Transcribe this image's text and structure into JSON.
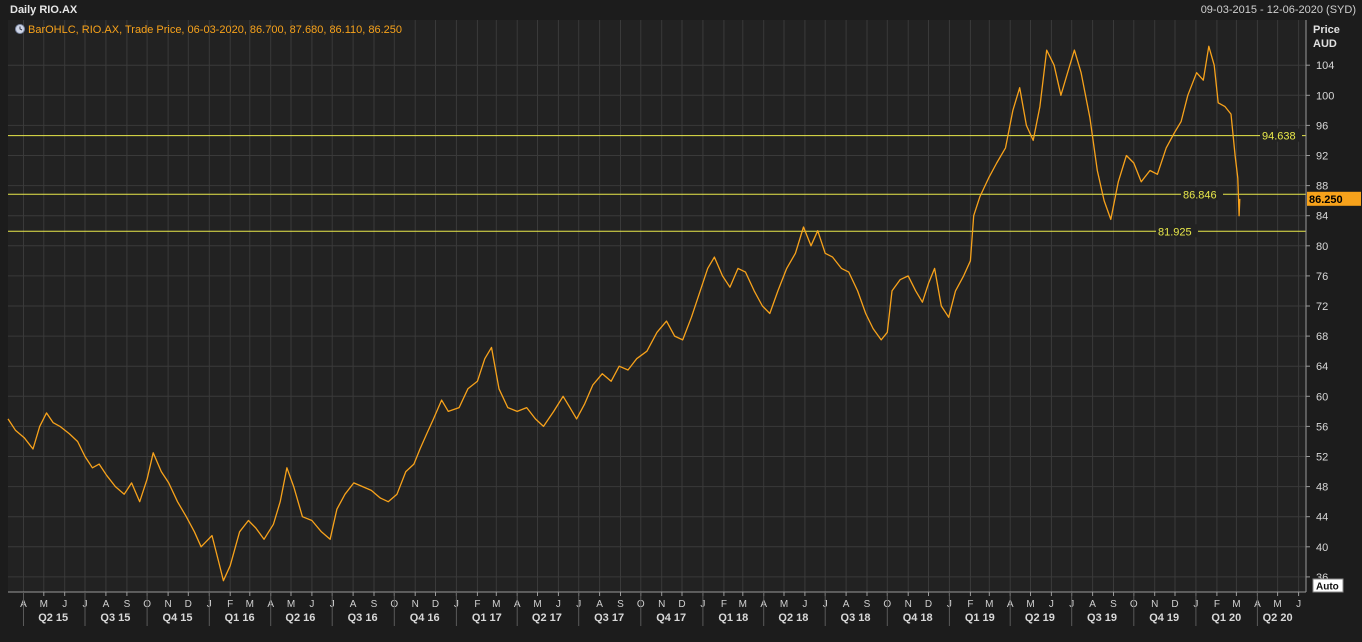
{
  "window": {
    "title": "Daily RIO.AX",
    "date_range": "09-03-2015 - 12-06-2020 (SYD)",
    "auto_label": "Auto"
  },
  "legend": {
    "text": "BarOHLC, RIO.AX, Trade Price, 06-03-2020, 86.700, 87.680, 86.110, 86.250",
    "icon": "clock-icon"
  },
  "colors": {
    "background": "#1c1c1c",
    "plot_background": "#222222",
    "grid": "#3a3a3a",
    "series": "#f7a21b",
    "levels": "#e8e84a",
    "last_price_tag": "#f7a21b"
  },
  "chart_data": {
    "type": "line",
    "title": "Daily RIO.AX",
    "series": [
      {
        "name": "RIO.AX",
        "points": [
          [
            "2015-03-09",
            57.0
          ],
          [
            "2015-03-20",
            55.5
          ],
          [
            "2015-04-02",
            54.5
          ],
          [
            "2015-04-15",
            53.0
          ],
          [
            "2015-04-25",
            56.0
          ],
          [
            "2015-05-05",
            57.8
          ],
          [
            "2015-05-15",
            56.5
          ],
          [
            "2015-05-25",
            56.0
          ],
          [
            "2015-06-08",
            55.0
          ],
          [
            "2015-06-20",
            54.0
          ],
          [
            "2015-07-01",
            52.0
          ],
          [
            "2015-07-12",
            50.5
          ],
          [
            "2015-07-22",
            51.0
          ],
          [
            "2015-08-02",
            49.5
          ],
          [
            "2015-08-15",
            48.0
          ],
          [
            "2015-08-28",
            47.0
          ],
          [
            "2015-09-08",
            48.5
          ],
          [
            "2015-09-20",
            46.0
          ],
          [
            "2015-10-01",
            49.0
          ],
          [
            "2015-10-10",
            52.5
          ],
          [
            "2015-10-22",
            50.0
          ],
          [
            "2015-11-02",
            48.5
          ],
          [
            "2015-11-15",
            46.0
          ],
          [
            "2015-11-28",
            44.0
          ],
          [
            "2015-12-10",
            42.0
          ],
          [
            "2015-12-20",
            40.0
          ],
          [
            "2016-01-05",
            41.5
          ],
          [
            "2016-01-15",
            38.0
          ],
          [
            "2016-01-22",
            35.5
          ],
          [
            "2016-02-01",
            37.5
          ],
          [
            "2016-02-15",
            42.0
          ],
          [
            "2016-02-28",
            43.5
          ],
          [
            "2016-03-10",
            42.5
          ],
          [
            "2016-03-22",
            41.0
          ],
          [
            "2016-04-05",
            43.0
          ],
          [
            "2016-04-15",
            46.0
          ],
          [
            "2016-04-25",
            50.5
          ],
          [
            "2016-05-05",
            48.0
          ],
          [
            "2016-05-18",
            44.0
          ],
          [
            "2016-06-01",
            43.5
          ],
          [
            "2016-06-15",
            42.0
          ],
          [
            "2016-06-28",
            41.0
          ],
          [
            "2016-07-08",
            45.0
          ],
          [
            "2016-07-20",
            47.0
          ],
          [
            "2016-08-02",
            48.5
          ],
          [
            "2016-08-15",
            48.0
          ],
          [
            "2016-08-28",
            47.5
          ],
          [
            "2016-09-10",
            46.5
          ],
          [
            "2016-09-22",
            46.0
          ],
          [
            "2016-10-05",
            47.0
          ],
          [
            "2016-10-18",
            50.0
          ],
          [
            "2016-10-30",
            51.0
          ],
          [
            "2016-11-08",
            53.0
          ],
          [
            "2016-11-18",
            55.0
          ],
          [
            "2016-11-28",
            57.0
          ],
          [
            "2016-12-10",
            59.5
          ],
          [
            "2016-12-20",
            58.0
          ],
          [
            "2017-01-05",
            58.5
          ],
          [
            "2017-01-18",
            61.0
          ],
          [
            "2017-02-01",
            62.0
          ],
          [
            "2017-02-12",
            65.0
          ],
          [
            "2017-02-22",
            66.5
          ],
          [
            "2017-03-05",
            61.0
          ],
          [
            "2017-03-18",
            58.5
          ],
          [
            "2017-04-01",
            58.0
          ],
          [
            "2017-04-15",
            58.5
          ],
          [
            "2017-04-28",
            57.0
          ],
          [
            "2017-05-10",
            56.0
          ],
          [
            "2017-05-25",
            58.0
          ],
          [
            "2017-06-08",
            60.0
          ],
          [
            "2017-06-18",
            58.5
          ],
          [
            "2017-06-28",
            57.0
          ],
          [
            "2017-07-10",
            59.0
          ],
          [
            "2017-07-22",
            61.5
          ],
          [
            "2017-08-05",
            63.0
          ],
          [
            "2017-08-18",
            62.0
          ],
          [
            "2017-08-30",
            64.0
          ],
          [
            "2017-09-12",
            63.5
          ],
          [
            "2017-09-25",
            65.0
          ],
          [
            "2017-10-10",
            66.0
          ],
          [
            "2017-10-25",
            68.5
          ],
          [
            "2017-11-08",
            70.0
          ],
          [
            "2017-11-20",
            68.0
          ],
          [
            "2017-12-02",
            67.5
          ],
          [
            "2017-12-15",
            70.5
          ],
          [
            "2017-12-28",
            74.0
          ],
          [
            "2018-01-08",
            77.0
          ],
          [
            "2018-01-18",
            78.5
          ],
          [
            "2018-01-30",
            76.0
          ],
          [
            "2018-02-10",
            74.5
          ],
          [
            "2018-02-22",
            77.0
          ],
          [
            "2018-03-05",
            76.5
          ],
          [
            "2018-03-18",
            74.0
          ],
          [
            "2018-03-30",
            72.0
          ],
          [
            "2018-04-10",
            71.0
          ],
          [
            "2018-04-22",
            74.0
          ],
          [
            "2018-05-05",
            77.0
          ],
          [
            "2018-05-18",
            79.0
          ],
          [
            "2018-05-30",
            82.5
          ],
          [
            "2018-06-10",
            80.0
          ],
          [
            "2018-06-20",
            82.0
          ],
          [
            "2018-07-01",
            79.0
          ],
          [
            "2018-07-12",
            78.5
          ],
          [
            "2018-07-25",
            77.0
          ],
          [
            "2018-08-05",
            76.5
          ],
          [
            "2018-08-18",
            74.0
          ],
          [
            "2018-08-30",
            71.0
          ],
          [
            "2018-09-10",
            69.0
          ],
          [
            "2018-09-22",
            67.5
          ],
          [
            "2018-10-01",
            68.5
          ],
          [
            "2018-10-08",
            74.0
          ],
          [
            "2018-10-20",
            75.5
          ],
          [
            "2018-11-01",
            76.0
          ],
          [
            "2018-11-12",
            74.0
          ],
          [
            "2018-11-22",
            72.5
          ],
          [
            "2018-12-01",
            75.0
          ],
          [
            "2018-12-10",
            77.0
          ],
          [
            "2018-12-20",
            72.0
          ],
          [
            "2018-12-31",
            70.5
          ],
          [
            "2019-01-10",
            74.0
          ],
          [
            "2019-01-22",
            76.0
          ],
          [
            "2019-02-01",
            78.0
          ],
          [
            "2019-02-06",
            84.0
          ],
          [
            "2019-02-15",
            86.5
          ],
          [
            "2019-02-28",
            89.0
          ],
          [
            "2019-03-12",
            91.0
          ],
          [
            "2019-03-25",
            93.0
          ],
          [
            "2019-04-05",
            98.0
          ],
          [
            "2019-04-15",
            101.0
          ],
          [
            "2019-04-25",
            96.0
          ],
          [
            "2019-05-05",
            94.0
          ],
          [
            "2019-05-15",
            98.5
          ],
          [
            "2019-05-25",
            106.0
          ],
          [
            "2019-06-05",
            104.0
          ],
          [
            "2019-06-15",
            100.0
          ],
          [
            "2019-06-25",
            103.0
          ],
          [
            "2019-07-05",
            106.0
          ],
          [
            "2019-07-15",
            103.0
          ],
          [
            "2019-07-28",
            97.0
          ],
          [
            "2019-08-08",
            90.0
          ],
          [
            "2019-08-18",
            86.0
          ],
          [
            "2019-08-28",
            83.5
          ],
          [
            "2019-09-08",
            88.5
          ],
          [
            "2019-09-20",
            92.0
          ],
          [
            "2019-10-01",
            91.0
          ],
          [
            "2019-10-12",
            88.5
          ],
          [
            "2019-10-25",
            90.0
          ],
          [
            "2019-11-05",
            89.5
          ],
          [
            "2019-11-18",
            93.0
          ],
          [
            "2019-11-30",
            95.0
          ],
          [
            "2019-12-10",
            96.5
          ],
          [
            "2019-12-20",
            100.0
          ],
          [
            "2020-01-02",
            103.0
          ],
          [
            "2020-01-12",
            102.0
          ],
          [
            "2020-01-20",
            106.5
          ],
          [
            "2020-01-28",
            104.0
          ],
          [
            "2020-02-03",
            99.0
          ],
          [
            "2020-02-13",
            98.5
          ],
          [
            "2020-02-22",
            97.5
          ],
          [
            "2020-02-28",
            92.0
          ],
          [
            "2020-03-03",
            89.0
          ],
          [
            "2020-03-05",
            84.0
          ],
          [
            "2020-03-06",
            86.25
          ]
        ]
      }
    ],
    "xlim": [
      "2015-03-09",
      "2020-06-12"
    ],
    "ylim": [
      34.0,
      110.0
    ],
    "yticks": [
      36,
      40,
      44,
      48,
      52,
      56,
      60,
      64,
      68,
      72,
      76,
      80,
      84,
      88,
      92,
      96,
      100,
      104
    ],
    "ylabel": "Price\nAUD",
    "ylabel_lines": [
      "Price",
      "AUD"
    ],
    "y_axis_position": "right",
    "grid": true,
    "horizontal_levels": [
      {
        "value": 94.638,
        "label": "94.638"
      },
      {
        "value": 86.846,
        "label": "86.846"
      },
      {
        "value": 81.925,
        "label": "81.925"
      }
    ],
    "last_price": {
      "value": 86.25,
      "label": "86.250"
    },
    "month_ticks": [
      [
        "2015-04-01",
        "A"
      ],
      [
        "2015-05-01",
        "M"
      ],
      [
        "2015-06-01",
        "J"
      ],
      [
        "2015-07-01",
        "J"
      ],
      [
        "2015-08-01",
        "A"
      ],
      [
        "2015-09-01",
        "S"
      ],
      [
        "2015-10-01",
        "O"
      ],
      [
        "2015-11-01",
        "N"
      ],
      [
        "2015-12-01",
        "D"
      ],
      [
        "2016-01-01",
        "J"
      ],
      [
        "2016-02-01",
        "F"
      ],
      [
        "2016-03-01",
        "M"
      ],
      [
        "2016-04-01",
        "A"
      ],
      [
        "2016-05-01",
        "M"
      ],
      [
        "2016-06-01",
        "J"
      ],
      [
        "2016-07-01",
        "J"
      ],
      [
        "2016-08-01",
        "A"
      ],
      [
        "2016-09-01",
        "S"
      ],
      [
        "2016-10-01",
        "O"
      ],
      [
        "2016-11-01",
        "N"
      ],
      [
        "2016-12-01",
        "D"
      ],
      [
        "2017-01-01",
        "J"
      ],
      [
        "2017-02-01",
        "F"
      ],
      [
        "2017-03-01",
        "M"
      ],
      [
        "2017-04-01",
        "A"
      ],
      [
        "2017-05-01",
        "M"
      ],
      [
        "2017-06-01",
        "J"
      ],
      [
        "2017-07-01",
        "J"
      ],
      [
        "2017-08-01",
        "A"
      ],
      [
        "2017-09-01",
        "S"
      ],
      [
        "2017-10-01",
        "O"
      ],
      [
        "2017-11-01",
        "N"
      ],
      [
        "2017-12-01",
        "D"
      ],
      [
        "2018-01-01",
        "J"
      ],
      [
        "2018-02-01",
        "F"
      ],
      [
        "2018-03-01",
        "M"
      ],
      [
        "2018-04-01",
        "A"
      ],
      [
        "2018-05-01",
        "M"
      ],
      [
        "2018-06-01",
        "J"
      ],
      [
        "2018-07-01",
        "J"
      ],
      [
        "2018-08-01",
        "A"
      ],
      [
        "2018-09-01",
        "S"
      ],
      [
        "2018-10-01",
        "O"
      ],
      [
        "2018-11-01",
        "N"
      ],
      [
        "2018-12-01",
        "D"
      ],
      [
        "2019-01-01",
        "J"
      ],
      [
        "2019-02-01",
        "F"
      ],
      [
        "2019-03-01",
        "M"
      ],
      [
        "2019-04-01",
        "A"
      ],
      [
        "2019-05-01",
        "M"
      ],
      [
        "2019-06-01",
        "J"
      ],
      [
        "2019-07-01",
        "J"
      ],
      [
        "2019-08-01",
        "A"
      ],
      [
        "2019-09-01",
        "S"
      ],
      [
        "2019-10-01",
        "O"
      ],
      [
        "2019-11-01",
        "N"
      ],
      [
        "2019-12-01",
        "D"
      ],
      [
        "2020-01-01",
        "J"
      ],
      [
        "2020-02-01",
        "F"
      ],
      [
        "2020-03-01",
        "M"
      ],
      [
        "2020-04-01",
        "A"
      ],
      [
        "2020-05-01",
        "M"
      ],
      [
        "2020-06-01",
        "J"
      ]
    ],
    "quarter_labels": [
      [
        "2015-05-15",
        "Q2 15"
      ],
      [
        "2015-08-15",
        "Q3 15"
      ],
      [
        "2015-11-15",
        "Q4 15"
      ],
      [
        "2016-02-15",
        "Q1 16"
      ],
      [
        "2016-05-15",
        "Q2 16"
      ],
      [
        "2016-08-15",
        "Q3 16"
      ],
      [
        "2016-11-15",
        "Q4 16"
      ],
      [
        "2017-02-15",
        "Q1 17"
      ],
      [
        "2017-05-15",
        "Q2 17"
      ],
      [
        "2017-08-15",
        "Q3 17"
      ],
      [
        "2017-11-15",
        "Q4 17"
      ],
      [
        "2018-02-15",
        "Q1 18"
      ],
      [
        "2018-05-15",
        "Q2 18"
      ],
      [
        "2018-08-15",
        "Q3 18"
      ],
      [
        "2018-11-15",
        "Q4 18"
      ],
      [
        "2019-02-15",
        "Q1 19"
      ],
      [
        "2019-05-15",
        "Q2 19"
      ],
      [
        "2019-08-15",
        "Q3 19"
      ],
      [
        "2019-11-15",
        "Q4 19"
      ],
      [
        "2020-02-15",
        "Q1 20"
      ],
      [
        "2020-05-01",
        "Q2 20"
      ]
    ]
  }
}
